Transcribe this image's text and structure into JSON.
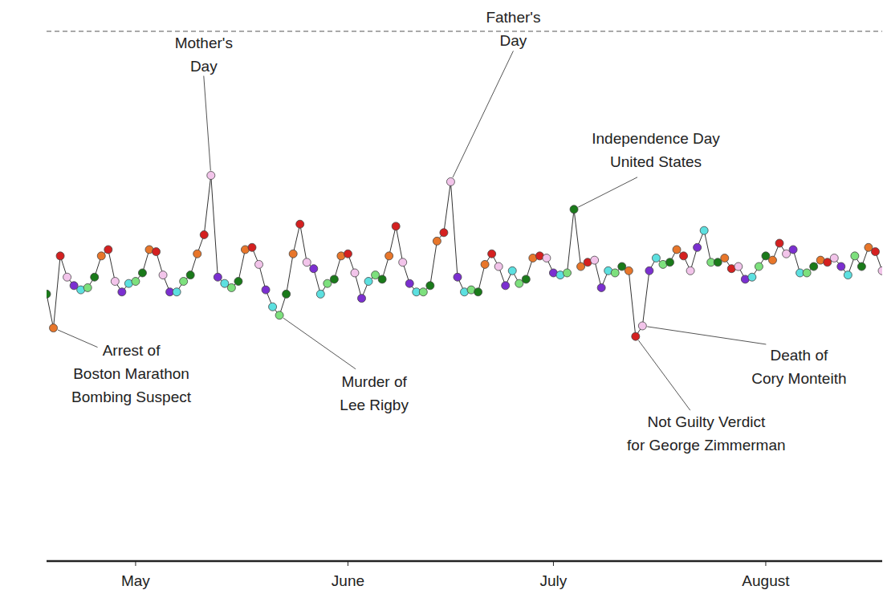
{
  "chart_data": {
    "type": "line",
    "grid": true,
    "tick_labels": "x",
    "marker": "circle",
    "line_style": "solid",
    "x": [
      108,
      109,
      110,
      111,
      112,
      113,
      114,
      115,
      116,
      117,
      118,
      119,
      120,
      121,
      122,
      123,
      124,
      125,
      126,
      127,
      128,
      129,
      130,
      131,
      132,
      133,
      134,
      135,
      136,
      137,
      138,
      139,
      140,
      141,
      142,
      143,
      144,
      145,
      146,
      147,
      148,
      149,
      150,
      151,
      152,
      153,
      154,
      155,
      156,
      157,
      158,
      159,
      160,
      161,
      162,
      163,
      164,
      165,
      166,
      167,
      168,
      169,
      170,
      171,
      172,
      173,
      174,
      175,
      176,
      177,
      178,
      179,
      180,
      181,
      182,
      183,
      184,
      185,
      186,
      187,
      188,
      189,
      190,
      191,
      192,
      193,
      194,
      195,
      196,
      197,
      198,
      199,
      200,
      201,
      202,
      203,
      204,
      205,
      206,
      207,
      208,
      209,
      210,
      211,
      212,
      213,
      214,
      215,
      216,
      217,
      218,
      219,
      220,
      221,
      222,
      223,
      224,
      225,
      226,
      227,
      228,
      229,
      230
    ],
    "values": [
      5.976,
      5.96,
      5.994,
      5.984,
      5.98,
      5.978,
      5.979,
      5.984,
      5.994,
      5.997,
      5.982,
      5.977,
      5.981,
      5.982,
      5.986,
      5.997,
      5.996,
      5.985,
      5.977,
      5.977,
      5.982,
      5.985,
      5.995,
      6.004,
      6.032,
      5.984,
      5.981,
      5.979,
      5.982,
      5.997,
      5.998,
      5.99,
      5.978,
      5.97,
      5.966,
      5.976,
      5.995,
      6.009,
      5.991,
      5.988,
      5.976,
      5.981,
      5.983,
      5.994,
      5.995,
      5.986,
      5.974,
      5.982,
      5.985,
      5.983,
      5.994,
      6.008,
      5.991,
      5.981,
      5.977,
      5.977,
      5.98,
      6.001,
      6.005,
      6.029,
      5.984,
      5.977,
      5.978,
      5.977,
      5.99,
      5.995,
      5.989,
      5.98,
      5.987,
      5.981,
      5.983,
      5.993,
      5.994,
      5.993,
      5.986,
      5.985,
      5.986,
      6.016,
      5.989,
      5.991,
      5.992,
      5.979,
      5.987,
      5.986,
      5.989,
      5.987,
      5.956,
      5.961,
      5.987,
      5.993,
      5.99,
      5.991,
      5.997,
      5.994,
      5.987,
      5.998,
      6.006,
      5.991,
      5.991,
      5.993,
      5.988,
      5.989,
      5.983,
      5.984,
      5.989,
      5.994,
      5.992,
      6.0,
      5.995,
      5.997,
      5.986,
      5.986,
      5.989,
      5.992,
      5.991,
      5.993,
      5.989,
      5.985,
      5.994,
      5.989,
      5.998,
      5.996,
      5.987
    ],
    "colors": [
      "#1a7a1a",
      "#e8762a",
      "#d42020",
      "#f2c4ea",
      "#7b2fd0",
      "#5ce0e0",
      "#7de07d",
      "#1a7a1a",
      "#e8762a",
      "#d42020",
      "#f2c4ea",
      "#7b2fd0",
      "#5ce0e0",
      "#7de07d",
      "#1a7a1a",
      "#e8762a",
      "#d42020",
      "#f2c4ea",
      "#7b2fd0",
      "#5ce0e0",
      "#7de07d",
      "#1a7a1a",
      "#e8762a",
      "#d42020",
      "#f2c4ea",
      "#7b2fd0",
      "#5ce0e0",
      "#7de07d",
      "#1a7a1a",
      "#e8762a",
      "#d42020",
      "#f2c4ea",
      "#7b2fd0",
      "#5ce0e0",
      "#7de07d",
      "#1a7a1a",
      "#e8762a",
      "#d42020",
      "#f2c4ea",
      "#7b2fd0",
      "#5ce0e0",
      "#7de07d",
      "#1a7a1a",
      "#e8762a",
      "#d42020",
      "#f2c4ea",
      "#7b2fd0",
      "#5ce0e0",
      "#7de07d",
      "#1a7a1a",
      "#e8762a",
      "#d42020",
      "#f2c4ea",
      "#7b2fd0",
      "#5ce0e0",
      "#7de07d",
      "#1a7a1a",
      "#e8762a",
      "#d42020",
      "#f2c4ea",
      "#7b2fd0",
      "#5ce0e0",
      "#7de07d",
      "#1a7a1a",
      "#e8762a",
      "#d42020",
      "#f2c4ea",
      "#7b2fd0",
      "#5ce0e0",
      "#7de07d",
      "#1a7a1a",
      "#e8762a",
      "#d42020",
      "#f2c4ea",
      "#7b2fd0",
      "#5ce0e0",
      "#7de07d",
      "#1a7a1a",
      "#e8762a",
      "#d42020",
      "#f2c4ea",
      "#7b2fd0",
      "#5ce0e0",
      "#7de07d",
      "#1a7a1a",
      "#e8762a",
      "#d42020",
      "#f2c4ea",
      "#7b2fd0",
      "#5ce0e0",
      "#7de07d",
      "#1a7a1a",
      "#e8762a",
      "#d42020",
      "#f2c4ea",
      "#7b2fd0",
      "#5ce0e0",
      "#7de07d",
      "#1a7a1a",
      "#e8762a",
      "#d42020",
      "#f2c4ea",
      "#7b2fd0",
      "#5ce0e0",
      "#7de07d",
      "#1a7a1a",
      "#e8762a",
      "#d42020",
      "#f2c4ea",
      "#7b2fd0",
      "#5ce0e0",
      "#7de07d",
      "#1a7a1a",
      "#e8762a",
      "#d42020",
      "#f2c4ea",
      "#7b2fd0",
      "#5ce0e0",
      "#7de07d",
      "#1a7a1a",
      "#e8762a",
      "#d42020",
      "#f2c4ea"
    ],
    "xlim": [
      108,
      230
    ],
    "xticks": [
      {
        "value": 121,
        "label": "May"
      },
      {
        "value": 152,
        "label": "June"
      },
      {
        "value": 182,
        "label": "July"
      },
      {
        "value": 213,
        "label": "August"
      }
    ],
    "ylim": [
      5.85,
      6.1
    ],
    "yticks": [
      5.85,
      5.9,
      5.95,
      6.0,
      6.05,
      6.1
    ],
    "annotations": [
      {
        "x": 109,
        "text": [
          "Arrest of",
          "Boston Marathon",
          "Bombing Suspect"
        ]
      },
      {
        "x": 132,
        "text": [
          "Mother's",
          "Day"
        ]
      },
      {
        "x": 142,
        "text": [
          "Murder of",
          "Lee Rigby"
        ]
      },
      {
        "x": 167,
        "text": [
          "Father's",
          "Day"
        ]
      },
      {
        "x": 185,
        "text": [
          "Independence Day",
          "United States"
        ]
      },
      {
        "x": 194,
        "text": [
          "Not Guilty Verdict",
          "for George Zimmerman"
        ]
      },
      {
        "x": 195,
        "text": [
          "Death of",
          "Cory Monteith"
        ]
      }
    ]
  }
}
